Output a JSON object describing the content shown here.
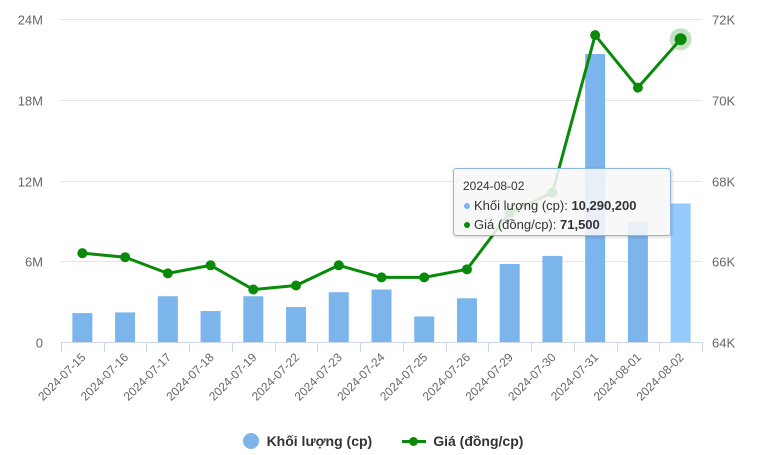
{
  "chart_data": {
    "type": "bar+line",
    "title": "",
    "categories": [
      "2024-07-15",
      "2024-07-16",
      "2024-07-17",
      "2024-07-18",
      "2024-07-19",
      "2024-07-22",
      "2024-07-23",
      "2024-07-24",
      "2024-07-25",
      "2024-07-26",
      "2024-07-29",
      "2024-07-30",
      "2024-07-31",
      "2024-08-01",
      "2024-08-02"
    ],
    "series": [
      {
        "name": "Khối lượng (cp)",
        "type": "bar",
        "axis": "left",
        "color": "#7cb5ec",
        "values": [
          2150000,
          2200000,
          3400000,
          2300000,
          3400000,
          2600000,
          3700000,
          3900000,
          1900000,
          3250000,
          5800000,
          6400000,
          21400000,
          8900000,
          10290200
        ]
      },
      {
        "name": "Giá (đồng/cp)",
        "type": "line",
        "axis": "right",
        "color": "#0a8a0a",
        "values": [
          66200,
          66100,
          65700,
          65900,
          65300,
          65400,
          65900,
          65600,
          65600,
          65800,
          67200,
          67700,
          71600,
          70300,
          71500
        ]
      }
    ],
    "y_left": {
      "label": "",
      "range": [
        0,
        24000000
      ],
      "ticks": [
        0,
        6000000,
        12000000,
        18000000,
        24000000
      ],
      "tick_labels": [
        "0",
        "6M",
        "12M",
        "18M",
        "24M"
      ]
    },
    "y_right": {
      "label": "",
      "range": [
        64000,
        72000
      ],
      "ticks": [
        64000,
        66000,
        68000,
        70000,
        72000
      ],
      "tick_labels": [
        "64K",
        "66K",
        "68K",
        "70K",
        "72K"
      ]
    },
    "xlabel": "",
    "grid": true,
    "legend_position": "bottom",
    "hovered_index": 14
  },
  "tooltip": {
    "date": "2024-08-02",
    "volume_label": "Khối lượng (cp): ",
    "volume_value": "10,290,200",
    "price_label": "Giá (đồng/cp): ",
    "price_value": "71,500"
  },
  "legend": {
    "volume": "Khối lượng (cp)",
    "price": "Giá (đồng/cp)"
  },
  "colors": {
    "bar": "#7cb5ec",
    "bar_hover": "#95cbfc",
    "line": "#0a8a0a",
    "grid": "#e6e6e6",
    "axis": "#ccd6eb"
  }
}
